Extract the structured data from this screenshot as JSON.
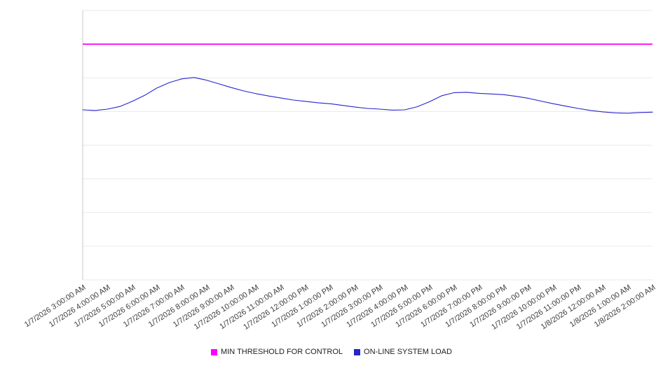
{
  "chart_data": {
    "type": "line",
    "title": "",
    "xlabel": "",
    "ylabel": "",
    "grid": true,
    "legend_position": "bottom",
    "x_axis": {
      "start": "1/7/2026 3:00:00 AM",
      "end": "1/8/2026 2:00:00 AM",
      "tick_labels": [
        "1/7/2026 3:00:00 AM",
        "1/7/2026 4:00:00 AM",
        "1/7/2026 5:00:00 AM",
        "1/7/2026 6:00:00 AM",
        "1/7/2026 7:00:00 AM",
        "1/7/2026 8:00:00 AM",
        "1/7/2026 9:00:00 AM",
        "1/7/2026 10:00:00 AM",
        "1/7/2026 11:00:00 AM",
        "1/7/2026 12:00:00 PM",
        "1/7/2026 1:00:00 PM",
        "1/7/2026 2:00:00 PM",
        "1/7/2026 3:00:00 PM",
        "1/7/2026 4:00:00 PM",
        "1/7/2026 5:00:00 PM",
        "1/7/2026 6:00:00 PM",
        "1/7/2026 7:00:00 PM",
        "1/7/2026 8:00:00 PM",
        "1/7/2026 9:00:00 PM",
        "1/7/2026 10:00:00 PM",
        "1/7/2026 11:00:00 PM",
        "1/8/2026 12:00:00 AM",
        "1/8/2026 1:00:00 AM",
        "1/8/2026 2:00:00 AM"
      ]
    },
    "y_axis": {
      "min": 0,
      "max": 800,
      "gridline_step": 100,
      "tick_labels_visible": false
    },
    "series": [
      {
        "name": "MIN THRESHOLD FOR CONTROL",
        "type": "constant",
        "value": 700,
        "color": "#ff00ff"
      },
      {
        "name": "ON-LINE SYSTEM LOAD",
        "type": "line",
        "color": "#2525cc",
        "sample_interval_minutes": 30,
        "values": [
          505,
          503,
          507,
          515,
          530,
          548,
          570,
          586,
          597,
          601,
          593,
          582,
          571,
          561,
          553,
          546,
          540,
          534,
          530,
          526,
          523,
          518,
          513,
          509,
          507,
          504,
          505,
          514,
          529,
          547,
          556,
          557,
          554,
          552,
          550,
          545,
          539,
          531,
          523,
          516,
          509,
          503,
          499,
          496,
          495,
          497,
          498
        ]
      }
    ],
    "colors": {
      "gridline": "#e9e9e9",
      "axis_line": "#c8c8c8",
      "background": "#ffffff"
    }
  }
}
